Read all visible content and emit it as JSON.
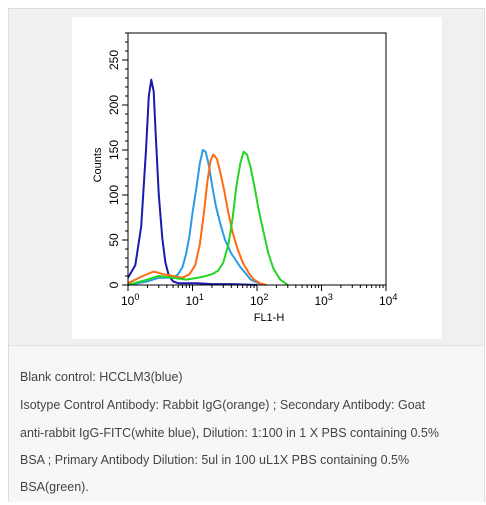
{
  "chart_data": {
    "type": "line",
    "xlabel": "FL1-H",
    "ylabel": "Counts",
    "xscale": "log",
    "xlim": [
      1,
      10000
    ],
    "ylim": [
      0,
      280
    ],
    "x_ticks": [
      {
        "base": "10",
        "exp": "0",
        "value": 1
      },
      {
        "base": "10",
        "exp": "1",
        "value": 10
      },
      {
        "base": "10",
        "exp": "2",
        "value": 100
      },
      {
        "base": "10",
        "exp": "3",
        "value": 1000
      },
      {
        "base": "10",
        "exp": "4",
        "value": 10000
      }
    ],
    "y_ticks": [
      "0",
      "50",
      "100",
      "150",
      "200",
      "250"
    ],
    "y_tick_values": [
      0,
      50,
      100,
      150,
      200,
      250
    ],
    "series": [
      {
        "color": "#1a1ab0",
        "x": [
          1.0,
          1.3,
          1.6,
          1.9,
          2.1,
          2.3,
          2.5,
          2.7,
          3.0,
          3.4,
          3.8,
          4.3,
          5.0,
          6.0,
          8.0,
          12,
          20,
          40,
          100
        ],
        "y": [
          8,
          22,
          65,
          150,
          210,
          228,
          215,
          165,
          100,
          52,
          25,
          10,
          4,
          2,
          2,
          2,
          1,
          1,
          0
        ]
      },
      {
        "color": "#2b9be8",
        "x": [
          1.0,
          2.0,
          3.0,
          4.0,
          5.0,
          6.0,
          7.0,
          8.0,
          9.0,
          10,
          11.5,
          13,
          14.5,
          16,
          18,
          20,
          23,
          27,
          32,
          40,
          55,
          80,
          120
        ],
        "y": [
          0,
          4,
          8,
          8,
          8,
          12,
          20,
          35,
          55,
          80,
          108,
          135,
          150,
          148,
          132,
          112,
          88,
          68,
          50,
          35,
          20,
          6,
          0
        ]
      },
      {
        "color": "#ff6a13",
        "x": [
          1.0,
          1.7,
          2.5,
          3.5,
          5.0,
          7.0,
          9.0,
          11,
          13,
          15,
          17,
          19,
          21,
          24,
          27,
          31,
          36,
          42,
          50,
          60,
          75,
          90,
          110,
          140
        ],
        "y": [
          2,
          10,
          15,
          12,
          10,
          8,
          12,
          22,
          45,
          80,
          115,
          138,
          145,
          140,
          125,
          105,
          80,
          58,
          40,
          25,
          13,
          6,
          2,
          0
        ]
      },
      {
        "color": "#23d623",
        "x": [
          1.0,
          2.0,
          3.0,
          5.0,
          8.0,
          12,
          16,
          20,
          25,
          30,
          36,
          42,
          48,
          55,
          62,
          70,
          80,
          92,
          105,
          125,
          150,
          180,
          230,
          300
        ],
        "y": [
          0,
          6,
          10,
          8,
          6,
          8,
          10,
          12,
          16,
          25,
          45,
          75,
          110,
          135,
          148,
          145,
          130,
          108,
          85,
          60,
          35,
          18,
          6,
          0
        ]
      }
    ]
  },
  "caption": {
    "lines": [
      "Blank control: HCCLM3(blue)",
      "Isotype Control Antibody: Rabbit IgG(orange) ; Secondary Antibody: Goat",
      "anti-rabbit IgG-FITC(white blue), Dilution: 1:100 in 1 X PBS containing 0.5%",
      "BSA ; Primary Antibody Dilution: 5ul in 100 uL1X PBS containing 0.5%",
      "BSA(green)."
    ]
  }
}
